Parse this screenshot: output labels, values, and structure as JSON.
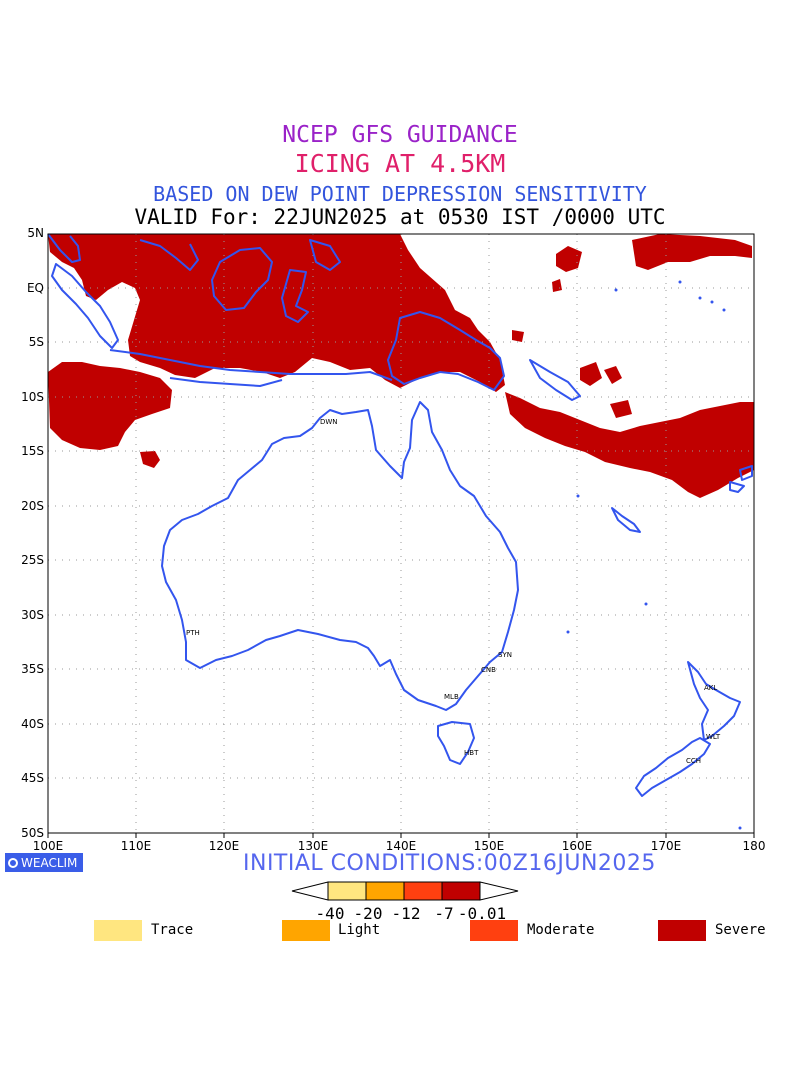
{
  "titles": {
    "line1": "NCEP GFS GUIDANCE",
    "line2": "ICING AT 4.5KM",
    "line3": "BASED ON DEW POINT DEPRESSION SENSITIVITY",
    "line4": "VALID For: 22JUN2025 at 0530 IST /0000 UTC"
  },
  "lat_labels": [
    "5N",
    "EQ",
    "5S",
    "10S",
    "15S",
    "20S",
    "25S",
    "30S",
    "35S",
    "40S",
    "45S",
    "50S"
  ],
  "lon_labels": [
    "100E",
    "110E",
    "120E",
    "130E",
    "140E",
    "150E",
    "160E",
    "170E",
    "180"
  ],
  "cities": [
    "DWN",
    "PTH",
    "SYN",
    "CNB",
    "MLB",
    "HBT",
    "AKL",
    "WLT",
    "CCH"
  ],
  "watermark": "WEACLIM",
  "initial_conditions": "INITIAL CONDITIONS:00Z16JUN2025",
  "colorbar": {
    "ticks": [
      "-40",
      "-20",
      "-12",
      "-7",
      "-0.01"
    ],
    "colors": [
      "#ffe680",
      "#ffa500",
      "#ff4010",
      "#c00000"
    ]
  },
  "legend": [
    {
      "label": "Trace",
      "color": "#ffe680"
    },
    {
      "label": "Light",
      "color": "#ffa500"
    },
    {
      "label": "Moderate",
      "color": "#ff4010"
    },
    {
      "label": "Severe",
      "color": "#c00000"
    }
  ],
  "colors": {
    "coastline": "#3355ee",
    "severe_icing": "#c00000",
    "grid": "#999999"
  }
}
